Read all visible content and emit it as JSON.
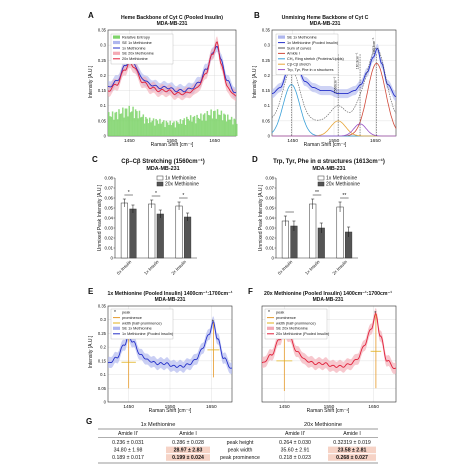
{
  "panels": {
    "A": {
      "letter": "A",
      "title": "Heme Backbone of Cyt C (Pooled Insulin)",
      "subtitle": "MDA-MB-231",
      "xlabel": "Raman Shift [cm⁻¹]",
      "ylabel": "Intensity [A.U.]",
      "legend": [
        "Relative Entropy",
        "SE 1x Methionine",
        "1x Methionine",
        "SE 20x Methionine",
        "20x Methionine"
      ]
    },
    "B": {
      "letter": "B",
      "title": "Unmixing Heme Backbone of Cyt C",
      "subtitle": "MDA-MB-231",
      "xlabel": "Raman Shift [cm⁻¹]",
      "ylabel": "Intensity [A.U.]",
      "legend": [
        "SE 1x Methionine",
        "1x Methionine (Pooled Insulin)",
        "Sum of curves",
        "Amide I",
        "CH₂ Ring stretch (Proteins/Lipids)",
        "Cβ-Cβ stretch",
        "Trp, Tyr, Phe in α structures"
      ],
      "annotations": [
        "1447cm⁻¹",
        "1560cm⁻¹",
        "1613cm⁻¹",
        "1653cm⁻¹"
      ]
    },
    "C": {
      "letter": "C",
      "title": "Cβ–Cβ Stretching (1560cm⁻¹)",
      "subtitle": "MDA-MB-231",
      "ylabel": "Unmixed Peak Intensity [A.U.]",
      "legend": [
        "1x Methionine",
        "20x Methionine"
      ],
      "categories": [
        "0x Insulin",
        "1x Insulin",
        "2x Insulin"
      ],
      "sig": "*"
    },
    "D": {
      "letter": "D",
      "title": "Trp, Tyr, Phe in α structures (1613cm⁻¹)",
      "subtitle": "MDA-MB-231",
      "ylabel": "Unmixed Peak Intensity [A.U.]",
      "legend": [
        "1x Methionine",
        "20x Methionine"
      ],
      "categories": [
        "0x Insulin",
        "1x Insulin",
        "2x Insulin"
      ],
      "sig": "**"
    },
    "E": {
      "letter": "E",
      "title": "1x Methionine (Pooled Insulin) 1400cm⁻¹:1700cm⁻¹",
      "subtitle": "MDA-MB-231",
      "xlabel": "Raman Shift [cm⁻¹]",
      "ylabel": "Intensity [A.U.]",
      "legend": [
        "peak",
        "prominence",
        "width (half-prominence)",
        "SE 1x Methionine",
        "1x Methionine (Pooled Insulin)"
      ]
    },
    "F": {
      "letter": "F",
      "title": "20x Methionine (Pooled Insulin) 1400cm⁻¹:1700cm⁻¹",
      "subtitle": "MDA-MB-231",
      "xlabel": "Raman Shift [cm⁻¹]",
      "legend": [
        "peak",
        "prominence",
        "width (half-prominence)",
        "SE 20x Methionine",
        "20x Methionine (Pooled Insulin)"
      ]
    }
  },
  "table": {
    "letter": "G",
    "group1": "1x Methionine",
    "group2": "20x Methionine",
    "col_a": "Amide II'",
    "col_b": "Amide I",
    "rows": [
      {
        "label": "peak height",
        "a1": "0.236 ± 0.031",
        "b1": "0.286 ± 0.028",
        "a2": "0.264 ± 0.030",
        "b2": "0.32319 ± 0.019"
      },
      {
        "label": "peak width",
        "a1": "34.80 ± 1.98",
        "b1": "28.97 ± 2.83",
        "a2": "35.60 ± 2.91",
        "b2": "23.58 ± 2.81"
      },
      {
        "label": "peak prominence",
        "a1": "0.189 ± 0.017",
        "b1": "0.199 ± 0.024",
        "a2": "0.218 ± 0.023",
        "b2": "0.268 ± 0.027"
      }
    ]
  },
  "colors": {
    "one_x": "#2430c8",
    "one_x_band": "#aeb6ee",
    "twenty_x": "#e0203a",
    "twenty_x_band": "#f3aab4",
    "entropy": "#7ed36a",
    "amide": "#d04a3a",
    "ring": "#3aa0d8",
    "cbeta": "#e7a63a",
    "trp": "#9a55c8",
    "bar_light": "#ffffff",
    "bar_dark": "#555555",
    "highlight": "#f6d3c6"
  },
  "chart_data": [
    {
      "panel": "A",
      "type": "line",
      "title": "Heme Backbone of Cyt C (Pooled Insulin)",
      "xlabel": "Raman Shift [cm⁻¹]",
      "ylabel": "Intensity [A.U.]",
      "xlim": [
        1400,
        1700
      ],
      "ylim": [
        0,
        0.35
      ],
      "xticks": [
        1450,
        1550,
        1650
      ],
      "yticks": [
        0,
        0.05,
        0.1,
        0.15,
        0.2,
        0.25,
        0.3,
        0.35
      ],
      "series": [
        {
          "name": "1x Methionine",
          "x": [
            1400,
            1420,
            1440,
            1450,
            1460,
            1480,
            1500,
            1520,
            1540,
            1560,
            1580,
            1600,
            1615,
            1630,
            1645,
            1655,
            1665,
            1680,
            1700
          ],
          "y": [
            0.16,
            0.18,
            0.23,
            0.25,
            0.24,
            0.19,
            0.17,
            0.16,
            0.16,
            0.15,
            0.15,
            0.16,
            0.18,
            0.22,
            0.27,
            0.3,
            0.25,
            0.18,
            0.14
          ]
        },
        {
          "name": "20x Methionine",
          "x": [
            1400,
            1420,
            1440,
            1450,
            1460,
            1480,
            1500,
            1520,
            1540,
            1560,
            1580,
            1600,
            1615,
            1630,
            1645,
            1655,
            1665,
            1680,
            1700
          ],
          "y": [
            0.15,
            0.17,
            0.22,
            0.24,
            0.23,
            0.18,
            0.16,
            0.15,
            0.15,
            0.14,
            0.14,
            0.15,
            0.17,
            0.21,
            0.27,
            0.31,
            0.24,
            0.16,
            0.13
          ]
        },
        {
          "name": "Relative Entropy",
          "x": [
            1400,
            1450,
            1500,
            1550,
            1600,
            1650,
            1700
          ],
          "y": [
            0.08,
            0.1,
            0.06,
            0.05,
            0.07,
            0.09,
            0.06
          ]
        }
      ]
    },
    {
      "panel": "B",
      "type": "line",
      "title": "Unmixing Heme Backbone of Cyt C",
      "xlabel": "Raman Shift [cm⁻¹]",
      "ylabel": "Intensity [A.U.]",
      "xlim": [
        1400,
        1700
      ],
      "ylim": [
        0,
        0.35
      ],
      "xticks": [
        1450,
        1550,
        1650
      ],
      "yticks": [
        0,
        0.05,
        0.1,
        0.15,
        0.2,
        0.25,
        0.3,
        0.35
      ],
      "series": [
        {
          "name": "1x Methionine (Pooled Insulin)",
          "x": [
            1400,
            1420,
            1440,
            1450,
            1460,
            1480,
            1500,
            1520,
            1540,
            1560,
            1580,
            1600,
            1615,
            1630,
            1645,
            1655,
            1665,
            1680,
            1700
          ],
          "y": [
            0.14,
            0.16,
            0.22,
            0.24,
            0.23,
            0.18,
            0.16,
            0.15,
            0.15,
            0.14,
            0.14,
            0.15,
            0.17,
            0.21,
            0.26,
            0.29,
            0.24,
            0.17,
            0.13
          ]
        },
        {
          "name": "Amide I",
          "center": 1653,
          "height": 0.24,
          "width": 22
        },
        {
          "name": "CH₂ Ring stretch (Proteins/Lipids)",
          "center": 1447,
          "height": 0.17,
          "width": 20
        },
        {
          "name": "Cβ-Cβ stretch",
          "center": 1560,
          "height": 0.05,
          "width": 18
        },
        {
          "name": "Trp, Tyr, Phe in α structures",
          "center": 1613,
          "height": 0.04,
          "width": 15
        }
      ]
    },
    {
      "panel": "C",
      "type": "bar",
      "title": "Cβ–Cβ Stretching (1560cm⁻¹)",
      "ylabel": "Unmixed Peak Intensity [A.U.]",
      "categories": [
        "0x Insulin",
        "1x Insulin",
        "2x Insulin"
      ],
      "ylim": [
        0,
        0.08
      ],
      "yticks": [
        0,
        0.01,
        0.02,
        0.03,
        0.04,
        0.05,
        0.06,
        0.07,
        0.08
      ],
      "series": [
        {
          "name": "1x Methionine",
          "values": [
            0.055,
            0.054,
            0.052
          ],
          "err": [
            0.004,
            0.004,
            0.004
          ]
        },
        {
          "name": "20x Methionine",
          "values": [
            0.049,
            0.044,
            0.041
          ],
          "err": [
            0.004,
            0.004,
            0.004
          ]
        }
      ]
    },
    {
      "panel": "D",
      "type": "bar",
      "title": "Trp, Tyr, Phe in α structures (1613cm⁻¹)",
      "ylabel": "Unmixed Peak Intensity [A.U.]",
      "categories": [
        "0x Insulin",
        "1x Insulin",
        "2x Insulin"
      ],
      "ylim": [
        0,
        0.08
      ],
      "yticks": [
        0,
        0.01,
        0.02,
        0.03,
        0.04,
        0.05,
        0.06,
        0.07,
        0.08
      ],
      "series": [
        {
          "name": "1x Methionine",
          "values": [
            0.037,
            0.054,
            0.051
          ],
          "err": [
            0.005,
            0.005,
            0.005
          ]
        },
        {
          "name": "20x Methionine",
          "values": [
            0.032,
            0.03,
            0.026
          ],
          "err": [
            0.005,
            0.005,
            0.005
          ]
        }
      ]
    },
    {
      "panel": "E",
      "type": "line",
      "title": "1x Methionine (Pooled Insulin) 1400cm⁻¹:1700cm⁻¹",
      "xlabel": "Raman Shift [cm⁻¹]",
      "ylabel": "Intensity [A.U.]",
      "xlim": [
        1400,
        1700
      ],
      "ylim": [
        0,
        0.35
      ],
      "xticks": [
        1450,
        1550,
        1650
      ],
      "yticks": [
        0,
        0.05,
        0.1,
        0.15,
        0.2,
        0.25,
        0.3,
        0.35
      ],
      "series": [
        {
          "name": "1x Methionine (Pooled Insulin)",
          "x": [
            1400,
            1420,
            1440,
            1450,
            1460,
            1480,
            1500,
            1520,
            1540,
            1560,
            1580,
            1600,
            1615,
            1630,
            1645,
            1655,
            1665,
            1680,
            1700
          ],
          "y": [
            0.14,
            0.16,
            0.21,
            0.24,
            0.22,
            0.17,
            0.15,
            0.14,
            0.14,
            0.13,
            0.13,
            0.14,
            0.16,
            0.2,
            0.25,
            0.29,
            0.23,
            0.16,
            0.12
          ]
        }
      ],
      "peaks": [
        {
          "x": 1450,
          "y": 0.24,
          "prominence": 0.19,
          "width": 34.8
        },
        {
          "x": 1655,
          "y": 0.29,
          "prominence": 0.2,
          "width": 29.0
        }
      ]
    },
    {
      "panel": "F",
      "type": "line",
      "title": "20x Methionine (Pooled Insulin) 1400cm⁻¹:1700cm⁻¹",
      "xlabel": "Raman Shift [cm⁻¹]",
      "xlim": [
        1400,
        1700
      ],
      "ylim": [
        0,
        0.35
      ],
      "xticks": [
        1450,
        1550,
        1650
      ],
      "yticks": [
        0,
        0.05,
        0.1,
        0.15,
        0.2,
        0.25,
        0.3,
        0.35
      ],
      "series": [
        {
          "name": "20x Methionine (Pooled Insulin)",
          "x": [
            1400,
            1420,
            1440,
            1450,
            1460,
            1480,
            1500,
            1520,
            1540,
            1560,
            1580,
            1600,
            1615,
            1630,
            1645,
            1655,
            1665,
            1680,
            1700
          ],
          "y": [
            0.14,
            0.17,
            0.23,
            0.26,
            0.24,
            0.18,
            0.15,
            0.14,
            0.14,
            0.13,
            0.13,
            0.14,
            0.16,
            0.21,
            0.27,
            0.32,
            0.24,
            0.15,
            0.12
          ]
        }
      ],
      "peaks": [
        {
          "x": 1450,
          "y": 0.26,
          "prominence": 0.22,
          "width": 35.6
        },
        {
          "x": 1655,
          "y": 0.32,
          "prominence": 0.27,
          "width": 23.6
        }
      ]
    }
  ]
}
